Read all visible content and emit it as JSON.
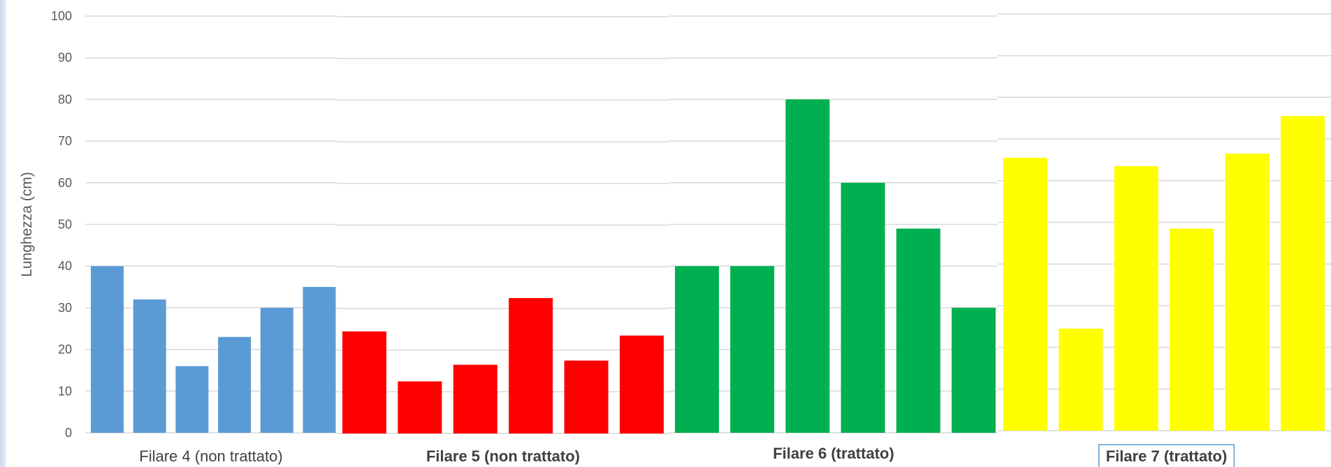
{
  "chart_data": {
    "type": "bar",
    "ylabel": "Lunghezza (cm)",
    "ylim": [
      0,
      100
    ],
    "yticks": [
      0,
      10,
      20,
      30,
      40,
      50,
      60,
      70,
      80,
      90,
      100
    ],
    "grid": true,
    "groups": [
      {
        "label": "Filare 4 (non trattato)",
        "color": "#5b9bd5",
        "bold": false,
        "boxed": false,
        "values": [
          40,
          32,
          16,
          23,
          30,
          35
        ]
      },
      {
        "label": "Filare 5 (non trattato)",
        "color": "#ff0000",
        "bold": true,
        "boxed": false,
        "values": [
          24.5,
          12.5,
          16.5,
          32.5,
          17.5,
          23.5
        ]
      },
      {
        "label": "Filare 6 (trattato)",
        "color": "#00b050",
        "bold": true,
        "boxed": false,
        "values": [
          40,
          40,
          80,
          60,
          49,
          30
        ]
      },
      {
        "label": "Filare 7 (trattato)",
        "color": "#ffff00",
        "bold": true,
        "boxed": true,
        "values": [
          65.5,
          24.5,
          63.5,
          48.5,
          66.5,
          75.5
        ]
      }
    ]
  }
}
